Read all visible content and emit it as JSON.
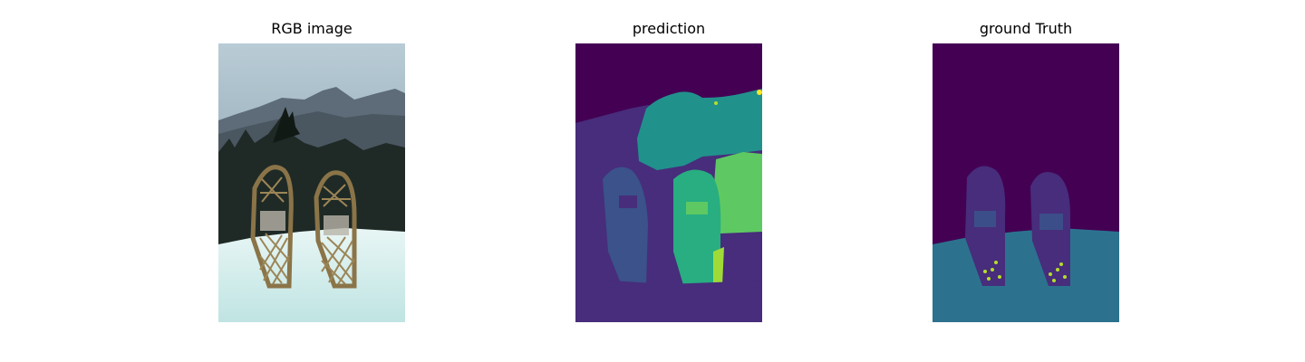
{
  "panels": [
    {
      "title": "RGB image"
    },
    {
      "title": "prediction"
    },
    {
      "title": "ground Truth"
    }
  ],
  "colors": {
    "viridis_0": "#440154",
    "viridis_1": "#472d7b",
    "viridis_2": "#3b528b",
    "viridis_3": "#2c728e",
    "viridis_4": "#21918c",
    "viridis_5": "#28ae80",
    "viridis_6": "#5ec962",
    "viridis_7": "#fde725"
  }
}
